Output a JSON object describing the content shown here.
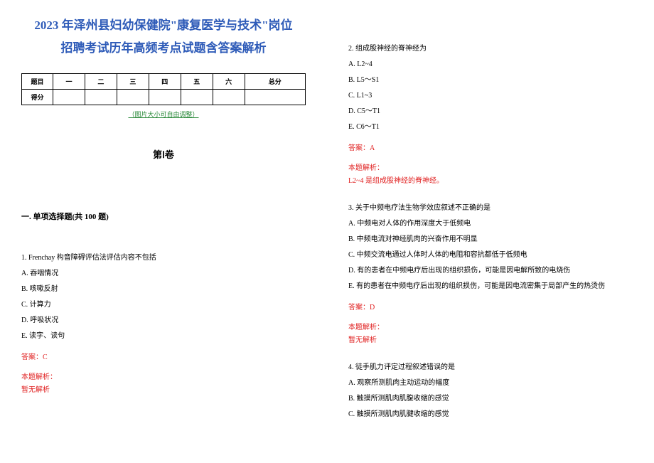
{
  "title_line1": "2023 年泽州县妇幼保健院\"康复医学与技术\"岗位",
  "title_line2": "招聘考试历年高频考点试题含答案解析",
  "score_table": {
    "row1_label": "题目",
    "cols": [
      "一",
      "二",
      "三",
      "四",
      "五",
      "六",
      "总分"
    ],
    "row2_label": "得分"
  },
  "img_note": "（图片大小可自由调整）",
  "volume": "第Ⅰ卷",
  "section_title": "一. 单项选择题(共 100 题)",
  "q1": {
    "stem": "1. Frenchay 构音障碍评估法评估内容不包括",
    "opts": [
      "A. 吞咽情况",
      "B. 咳嗽反射",
      "C. 计算力",
      "D. 呼吸状况",
      "E. 读字、读句"
    ],
    "ans": "答案：C",
    "expl_label": "本题解析：",
    "expl_body": "暂无解析"
  },
  "q2": {
    "stem": "2. 组成股神经的脊神经为",
    "opts": [
      "A. L2~4",
      "B. L5～S1",
      "C. L1~3",
      "D. C5～T1",
      "E. C6～T1"
    ],
    "ans": "答案：A",
    "expl_label": "本题解析：",
    "expl_body": "L2~4 是组成股神经的脊神经。"
  },
  "q3": {
    "stem": "3. 关于中频电疗法生物学效应叙述不正确的是",
    "opts": [
      "A. 中频电对人体的作用深度大于低频电",
      "B. 中频电流对神经肌肉的兴奋作用不明显",
      "C. 中频交流电通过人体时人体的电阻和容抗都低于低频电",
      "D. 有的患者在中频电疗后出现的组织损伤，可能是因电解所致的电烧伤",
      "E. 有的患者在中频电疗后出现的组织损伤，可能是因电流密集于局部产生的热烫伤"
    ],
    "ans": "答案：D",
    "expl_label": "本题解析：",
    "expl_body": "暂无解析"
  },
  "q4": {
    "stem": "4. 徒手肌力评定过程叙述错误的是",
    "opts": [
      "A. 观察所测肌肉主动运动的幅度",
      "B. 触摸所测肌肉肌腹收缩的感觉",
      "C. 触摸所测肌肉肌腱收缩的感觉"
    ]
  },
  "colors": {
    "title": "#2e5bb8",
    "note": "#2a8a3a",
    "answer": "#e02020",
    "text": "#000000",
    "bg": "#ffffff"
  }
}
